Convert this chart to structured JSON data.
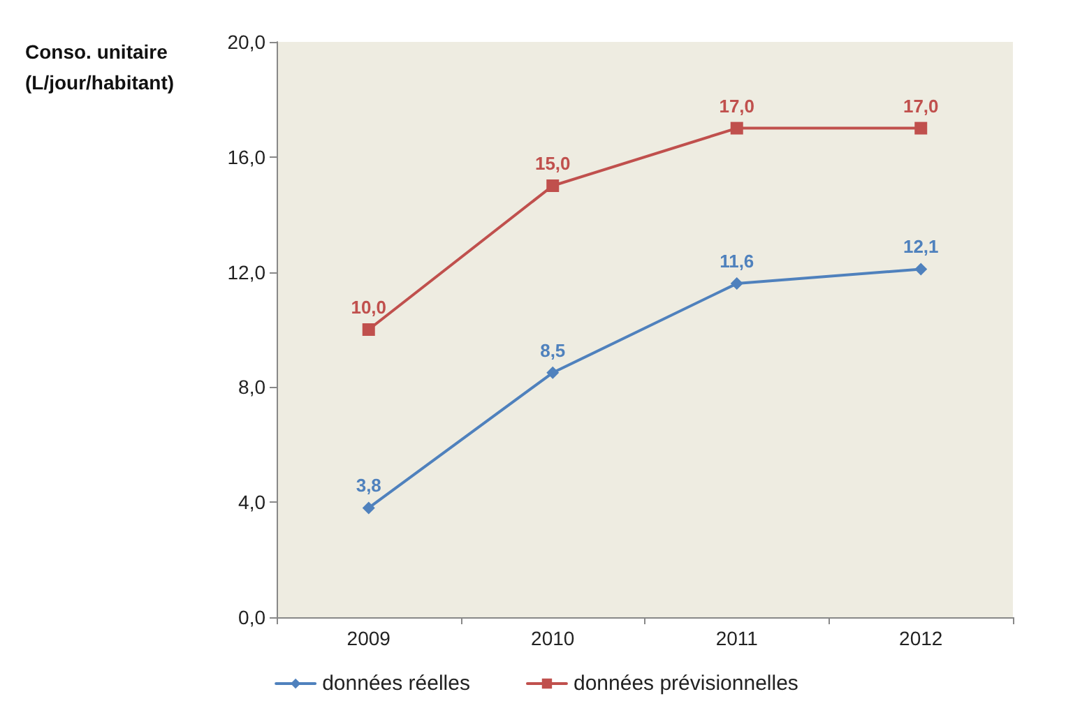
{
  "chart_data": {
    "type": "line",
    "ylabel": "Conso. unitaire\n(L/jour/habitant)",
    "categories": [
      "2009",
      "2010",
      "2011",
      "2012"
    ],
    "series": [
      {
        "name": "données réelles",
        "color": "#4f81bd",
        "marker": "diamond",
        "values": [
          3.8,
          8.5,
          11.6,
          12.1
        ],
        "value_labels": [
          "3,8",
          "8,5",
          "11,6",
          "12,1"
        ]
      },
      {
        "name": "données prévisionnelles",
        "color": "#c0504d",
        "marker": "square",
        "values": [
          10.0,
          15.0,
          17.0,
          17.0
        ],
        "value_labels": [
          "10,0",
          "15,0",
          "17,0",
          "17,0"
        ]
      }
    ],
    "ylim": [
      0,
      20
    ],
    "yticks": [
      {
        "value": 0,
        "label": "0,0"
      },
      {
        "value": 4,
        "label": "4,0"
      },
      {
        "value": 8,
        "label": "8,0"
      },
      {
        "value": 12,
        "label": "12,0"
      },
      {
        "value": 16,
        "label": "16,0"
      },
      {
        "value": 20,
        "label": "20,0"
      }
    ],
    "grid": false,
    "legend": "bottom",
    "line_style": "solid"
  }
}
